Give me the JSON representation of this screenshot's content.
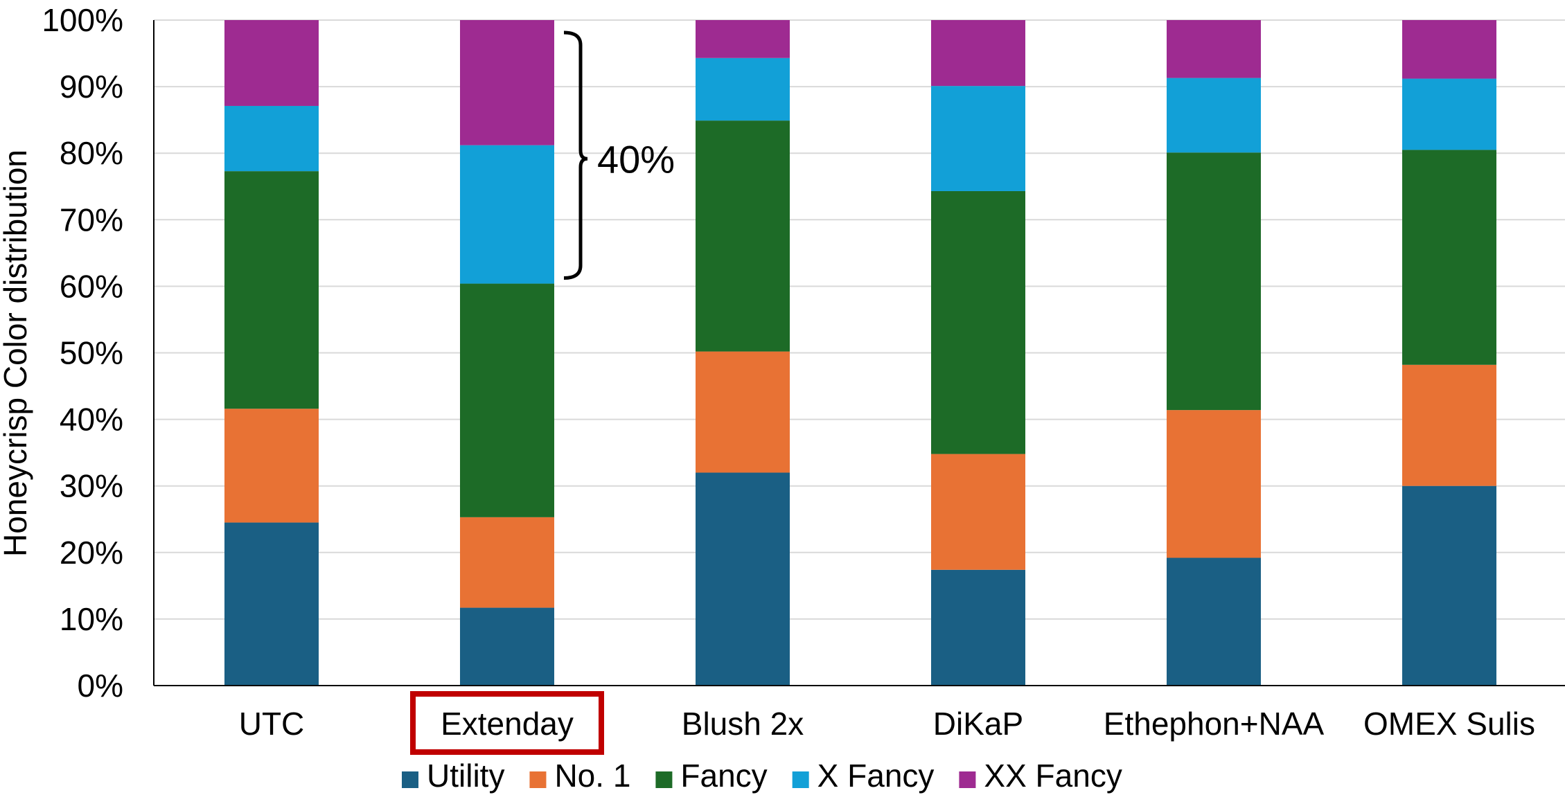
{
  "chart_data": {
    "type": "bar",
    "stacked": true,
    "percent_stacked": true,
    "ylabel": "Honeycrisp Color distribution",
    "xlabel": "",
    "ylim": [
      0,
      100
    ],
    "y_ticks": [
      "0%",
      "10%",
      "20%",
      "30%",
      "40%",
      "50%",
      "60%",
      "70%",
      "80%",
      "90%",
      "100%"
    ],
    "grid": true,
    "legend_position": "bottom",
    "categories": [
      "UTC",
      "Extenday",
      "Blush 2x",
      "DiKaP",
      "Ethephon+NAA",
      "OMEX Sulis"
    ],
    "highlighted_category": "Extenday",
    "highlight_color": "#c00000",
    "series": [
      {
        "name": "Utility",
        "color": "#1a5f84",
        "values": [
          24.5,
          11.7,
          32.0,
          17.4,
          19.2,
          30.0
        ]
      },
      {
        "name": "No. 1",
        "color": "#e87234",
        "values": [
          17.1,
          13.6,
          18.2,
          17.4,
          22.2,
          18.2
        ]
      },
      {
        "name": "Fancy",
        "color": "#1d6b27",
        "values": [
          35.7,
          35.1,
          34.7,
          39.5,
          38.7,
          32.3
        ]
      },
      {
        "name": "X Fancy",
        "color": "#12a0d7",
        "values": [
          9.8,
          20.8,
          9.4,
          15.8,
          11.2,
          10.7
        ]
      },
      {
        "name": "XX Fancy",
        "color": "#9e2b91",
        "values": [
          12.9,
          18.8,
          5.7,
          9.9,
          8.7,
          8.8
        ]
      }
    ],
    "annotation": {
      "text": "40%",
      "category": "Extenday",
      "from": 60.4,
      "to": 100
    }
  }
}
